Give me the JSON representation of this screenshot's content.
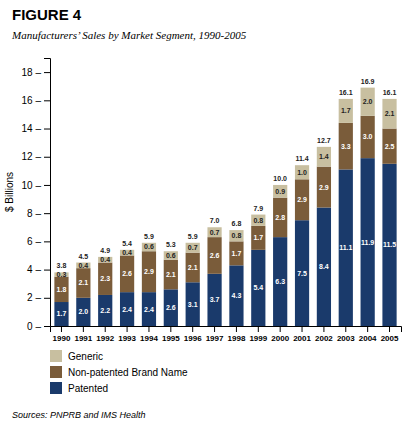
{
  "chart_data": {
    "type": "bar",
    "stacked": true,
    "title": "FIGURE 4",
    "subtitle": "Manufacturers’ Sales by Market Segment, 1990-2005",
    "ylabel": "$ Billions",
    "source": "Sources: PNPRB and IMS Health",
    "categories": [
      "1990",
      "1991",
      "1992",
      "1993",
      "1994",
      "1995",
      "1996",
      "1997",
      "1998",
      "1999",
      "2000",
      "2001",
      "2002",
      "2003",
      "2004",
      "2005"
    ],
    "series": [
      {
        "name": "Patented",
        "color": "#1a3a6b",
        "values": [
          1.7,
          2.0,
          2.2,
          2.4,
          2.4,
          2.6,
          3.1,
          3.7,
          4.3,
          5.4,
          6.3,
          7.5,
          8.4,
          11.1,
          11.9,
          11.5
        ],
        "value_labels": [
          "1.7",
          "2.0",
          "2.2",
          "2.4",
          "2.4",
          "2.6",
          "3.1",
          "3.7",
          "4.3",
          "5.4",
          "6.3",
          "7.5",
          "8.4",
          "11.1",
          "11.9",
          "11.5"
        ]
      },
      {
        "name": "Non-patented Brand Name",
        "color": "#7a5c3a",
        "values": [
          1.8,
          2.1,
          2.3,
          2.6,
          2.9,
          2.1,
          2.1,
          2.6,
          1.7,
          1.7,
          2.8,
          2.9,
          2.9,
          3.3,
          3.0,
          2.5
        ],
        "value_labels": [
          "1.8",
          "2.1",
          "2.3",
          "2.6",
          "2.9",
          "2.1",
          "2.1",
          "2.6",
          "1.7",
          "1.7",
          "2.8",
          "2.9",
          "2.9",
          "3.3",
          "3.0",
          "2.5"
        ]
      },
      {
        "name": "Generic",
        "color": "#c8bfa0",
        "values": [
          0.3,
          0.4,
          0.4,
          0.4,
          0.6,
          0.6,
          0.7,
          0.7,
          0.8,
          0.8,
          0.9,
          1.0,
          1.4,
          1.7,
          2.0,
          2.1
        ],
        "value_labels": [
          "0.3",
          "0.4",
          "0.4",
          "0.4",
          "0.6",
          "0.6",
          "0.7",
          "0.7",
          "0.8",
          "0.8",
          "0.9",
          "1.0",
          "1.4",
          "1.7",
          "2.0",
          "2.1"
        ]
      }
    ],
    "totals": [
      3.8,
      4.5,
      4.9,
      5.4,
      5.9,
      5.3,
      5.9,
      7.0,
      6.8,
      7.9,
      10.0,
      11.4,
      12.7,
      16.1,
      16.9,
      16.1
    ],
    "total_labels": [
      "3.8",
      "4.5",
      "4.9",
      "5.4",
      "5.9",
      "5.3",
      "5.9",
      "7.0",
      "6.8",
      "7.9",
      "10.0",
      "11.4",
      "12.7",
      "16.1",
      "16.9",
      "16.1"
    ],
    "ylim": [
      0,
      19
    ],
    "yticks": [
      {
        "value": 0,
        "label": "0 –"
      },
      {
        "value": 2,
        "label": "2 –"
      },
      {
        "value": 4,
        "label": "4 –"
      },
      {
        "value": 6,
        "label": "6 –"
      },
      {
        "value": 8,
        "label": "8 –"
      },
      {
        "value": 10,
        "label": "10 –"
      },
      {
        "value": 12,
        "label": "12 –"
      },
      {
        "value": 14,
        "label": "14 –"
      },
      {
        "value": 16,
        "label": "16 –"
      },
      {
        "value": 18,
        "label": "18 –"
      }
    ],
    "grid": false,
    "legend": "bottom",
    "data_labels": true
  }
}
